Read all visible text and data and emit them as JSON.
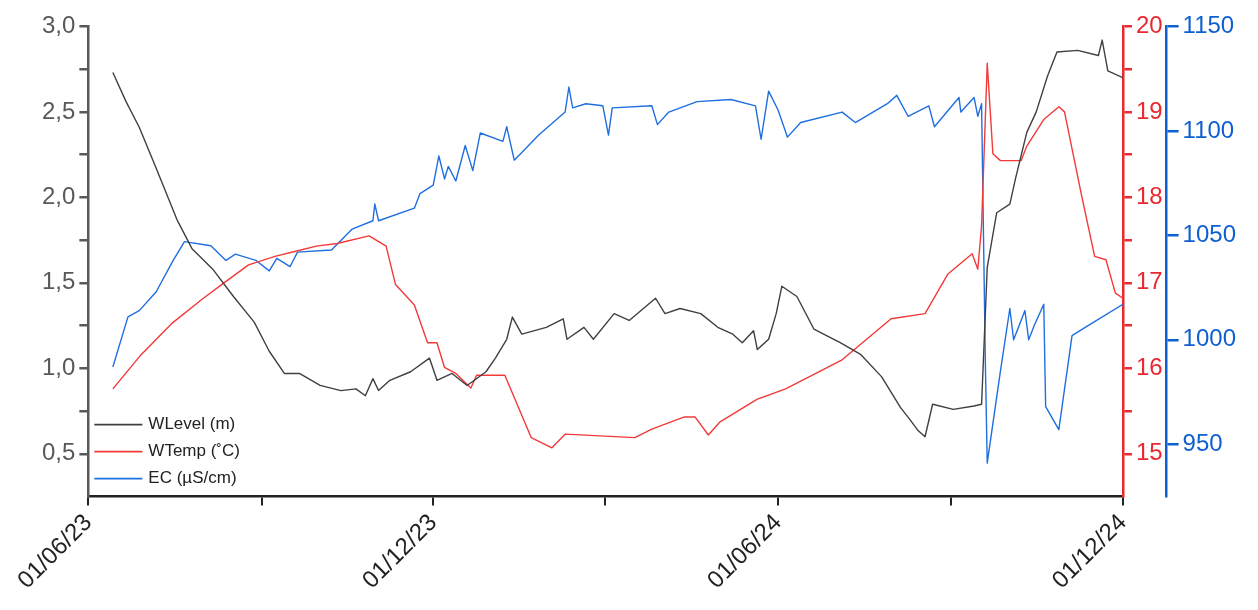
{
  "chart_data": {
    "type": "line",
    "marker": "none",
    "line_style": "solid",
    "legend": "bottom left",
    "xlim": [
      "2023-06-01",
      "2024-12-01"
    ],
    "xticks": [
      {
        "value": "2023-06-01",
        "label": "01/06/23"
      },
      {
        "value": "2023-09-01",
        "label": null
      },
      {
        "value": "2023-12-01",
        "label": "01/12/23"
      },
      {
        "value": "2024-03-01",
        "label": null
      },
      {
        "value": "2024-06-01",
        "label": "01/06/24"
      },
      {
        "value": "2024-09-01",
        "label": null
      },
      {
        "value": "2024-12-01",
        "label": "01/12/24"
      }
    ],
    "ylim": [
      0.25,
      3.0
    ],
    "yticks": [
      {
        "value": 0.5,
        "label": "0,5"
      },
      {
        "value": 0.75,
        "label": null
      },
      {
        "value": 1.0,
        "label": "1,0"
      },
      {
        "value": 1.25,
        "label": null
      },
      {
        "value": 1.5,
        "label": "1,5"
      },
      {
        "value": 1.75,
        "label": null
      },
      {
        "value": 2.0,
        "label": "2,0"
      },
      {
        "value": 2.25,
        "label": null
      },
      {
        "value": 2.5,
        "label": "2,5"
      },
      {
        "value": 2.75,
        "label": null
      },
      {
        "value": 3.0,
        "label": "3,0"
      }
    ],
    "y2lim": [
      14.5,
      20
    ],
    "y2ticks": [
      15,
      {
        "value": 15.5,
        "label": null
      },
      16,
      {
        "value": 16.5,
        "label": null
      },
      17,
      {
        "value": 17.5,
        "label": null
      },
      18,
      {
        "value": 18.5,
        "label": null
      },
      19,
      {
        "value": 19.5,
        "label": null
      },
      20
    ],
    "y3lim": [
      925,
      1150
    ],
    "y3ticks": [
      950,
      1000,
      1050,
      1100,
      1150
    ],
    "series": [
      {
        "name": "WLevel (m)",
        "color": "#404040",
        "x": [
          "2023-06-14",
          "2023-06-21",
          "2023-06-28",
          "2023-07-07",
          "2023-07-18",
          "2023-07-26",
          "2023-08-06",
          "2023-08-17",
          "2023-08-28",
          "2023-09-05",
          "2023-09-13",
          "2023-09-21",
          "2023-10-02",
          "2023-10-13",
          "2023-10-21",
          "2023-10-26",
          "2023-10-30",
          "2023-11-02",
          "2023-11-08",
          "2023-11-19",
          "2023-11-29",
          "2023-12-03",
          "2023-12-11",
          "2023-12-19",
          "2023-12-29",
          "2024-01-03",
          "2024-01-09",
          "2024-01-12",
          "2024-01-17",
          "2024-01-30",
          "2024-02-08",
          "2024-02-10",
          "2024-02-19",
          "2024-02-24",
          "2024-03-06",
          "2024-03-14",
          "2024-03-28",
          "2024-04-02",
          "2024-04-10",
          "2024-04-21",
          "2024-04-30",
          "2024-05-08",
          "2024-05-13",
          "2024-05-19",
          "2024-05-21",
          "2024-05-27",
          "2024-05-31",
          "2024-06-03",
          "2024-06-11",
          "2024-06-20",
          "2024-07-04",
          "2024-07-15",
          "2024-07-26",
          "2024-08-05",
          "2024-08-10",
          "2024-08-14",
          "2024-08-18",
          "2024-08-22",
          "2024-09-02",
          "2024-09-13",
          "2024-09-17",
          "2024-09-20",
          "2024-09-25",
          "2024-10-02",
          "2024-10-05",
          "2024-10-11",
          "2024-10-16",
          "2024-10-22",
          "2024-10-27",
          "2024-11-07",
          "2024-11-18",
          "2024-11-20",
          "2024-11-23",
          "2024-12-01"
        ],
        "values": [
          2.73,
          2.56,
          2.41,
          2.17,
          1.87,
          1.7,
          1.58,
          1.42,
          1.27,
          1.1,
          0.97,
          0.97,
          0.9,
          0.87,
          0.88,
          0.84,
          0.94,
          0.87,
          0.93,
          0.98,
          1.06,
          0.93,
          0.97,
          0.9,
          0.98,
          1.06,
          1.17,
          1.3,
          1.2,
          1.24,
          1.29,
          1.17,
          1.24,
          1.17,
          1.32,
          1.28,
          1.41,
          1.32,
          1.35,
          1.32,
          1.24,
          1.2,
          1.15,
          1.22,
          1.11,
          1.17,
          1.32,
          1.48,
          1.42,
          1.23,
          1.15,
          1.08,
          0.95,
          0.77,
          0.7,
          0.64,
          0.6,
          0.79,
          0.76,
          0.78,
          0.79,
          1.59,
          1.91,
          1.96,
          2.11,
          2.38,
          2.5,
          2.71,
          2.85,
          2.86,
          2.83,
          2.92,
          2.74,
          2.7
        ]
      },
      {
        "name": "WTemp (˚C)",
        "color": "#f23a3a",
        "axis": "y2",
        "x": [
          "2023-06-14",
          "2023-06-29",
          "2023-07-15",
          "2023-08-01",
          "2023-08-12",
          "2023-08-25",
          "2023-09-08",
          "2023-09-19",
          "2023-09-30",
          "2023-10-11",
          "2023-10-28",
          "2023-11-06",
          "2023-11-11",
          "2023-11-21",
          "2023-11-28",
          "2023-12-03",
          "2023-12-07",
          "2023-12-13",
          "2023-12-21",
          "2023-12-24",
          "2024-01-08",
          "2024-01-22",
          "2024-02-02",
          "2024-02-09",
          "2024-03-17",
          "2024-03-26",
          "2024-04-12",
          "2024-04-18",
          "2024-04-25",
          "2024-05-01",
          "2024-05-21",
          "2024-06-05",
          "2024-07-05",
          "2024-07-31",
          "2024-08-18",
          "2024-08-30",
          "2024-09-12",
          "2024-09-15",
          "2024-09-17",
          "2024-09-20",
          "2024-09-23",
          "2024-09-27",
          "2024-10-08",
          "2024-10-11",
          "2024-10-20",
          "2024-10-28",
          "2024-10-31",
          "2024-11-09",
          "2024-11-16",
          "2024-11-22",
          "2024-11-27",
          "2024-12-01"
        ],
        "values": [
          15.76,
          16.16,
          16.52,
          16.82,
          17.0,
          17.21,
          17.31,
          17.37,
          17.43,
          17.46,
          17.55,
          17.43,
          16.98,
          16.74,
          16.3,
          16.3,
          16.01,
          15.94,
          15.77,
          15.92,
          15.92,
          15.19,
          15.07,
          15.23,
          15.19,
          15.29,
          15.43,
          15.43,
          15.22,
          15.37,
          15.64,
          15.76,
          16.1,
          16.58,
          16.64,
          17.1,
          17.34,
          17.16,
          17.67,
          19.57,
          18.51,
          18.43,
          18.43,
          18.6,
          18.91,
          19.06,
          19.0,
          18.03,
          17.31,
          17.27,
          16.88,
          16.82
        ]
      },
      {
        "name": "EC (µS/cm)",
        "color": "#1f6fe0",
        "axis": "y3",
        "x": [
          "2023-06-14",
          "2023-06-22",
          "2023-06-28",
          "2023-07-07",
          "2023-07-16",
          "2023-07-22",
          "2023-08-05",
          "2023-08-13",
          "2023-08-18",
          "2023-08-29",
          "2023-09-05",
          "2023-09-09",
          "2023-09-16",
          "2023-09-20",
          "2023-10-08",
          "2023-10-19",
          "2023-10-30",
          "2023-10-31",
          "2023-11-02",
          "2023-11-21",
          "2023-11-24",
          "2023-12-01",
          "2023-12-04",
          "2023-12-07",
          "2023-12-09",
          "2023-12-13",
          "2023-12-18",
          "2023-12-22",
          "2023-12-26",
          "2024-01-07",
          "2024-01-09",
          "2024-01-13",
          "2024-01-26",
          "2024-02-09",
          "2024-02-11",
          "2024-02-13",
          "2024-02-20",
          "2024-02-29",
          "2024-03-03",
          "2024-03-05",
          "2024-03-26",
          "2024-03-29",
          "2024-04-04",
          "2024-04-19",
          "2024-05-07",
          "2024-05-20",
          "2024-05-23",
          "2024-05-27",
          "2024-06-01",
          "2024-06-06",
          "2024-06-13",
          "2024-07-05",
          "2024-07-12",
          "2024-07-29",
          "2024-08-03",
          "2024-08-09",
          "2024-08-20",
          "2024-08-23",
          "2024-09-05",
          "2024-09-06",
          "2024-09-13",
          "2024-09-15",
          "2024-09-17",
          "2024-09-19",
          "2024-09-20",
          "2024-09-27",
          "2024-10-02",
          "2024-10-04",
          "2024-10-10",
          "2024-10-12",
          "2024-10-15",
          "2024-10-20",
          "2024-10-21",
          "2024-10-28",
          "2024-11-04",
          "2024-11-11",
          "2024-12-01"
        ],
        "values": [
          987,
          1011,
          1014,
          1023,
          1038,
          1047,
          1045,
          1038,
          1041,
          1038,
          1033,
          1039,
          1035,
          1042,
          1043,
          1053,
          1057,
          1065,
          1057,
          1063,
          1070,
          1074,
          1088,
          1077,
          1083,
          1076,
          1093,
          1081,
          1099,
          1095,
          1102,
          1086,
          1098,
          1109,
          1121,
          1111,
          1113,
          1112,
          1098,
          1111,
          1112,
          1103,
          1109,
          1114,
          1115,
          1112,
          1096,
          1119,
          1110,
          1097,
          1104,
          1109,
          1104,
          1113,
          1117,
          1107,
          1112,
          1102,
          1116,
          1109,
          1116,
          1107,
          1113,
          989,
          941,
          985,
          1015,
          1000,
          1014,
          1000,
          1007,
          1017,
          968,
          957,
          1002,
          1006,
          1017
        ]
      }
    ]
  }
}
